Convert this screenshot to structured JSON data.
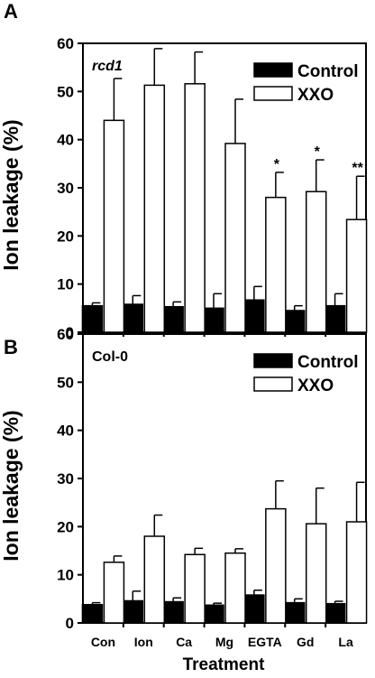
{
  "figure": {
    "xlabel": "Treatment",
    "ylabel": "Ion leakage (%)"
  },
  "chart_data": [
    {
      "type": "bar",
      "panel": "A",
      "label": "rcd1",
      "categories": [
        "Con",
        "Ion",
        "Ca",
        "Mg",
        "EGTA",
        "Gd",
        "La"
      ],
      "ylim": [
        0,
        60
      ],
      "yticks": [
        0,
        10,
        20,
        30,
        40,
        50,
        60
      ],
      "legend": "top-right",
      "grid": false,
      "series": [
        {
          "name": "Control",
          "color": "#000000",
          "values": [
            5.5,
            5.8,
            5.3,
            5.0,
            6.7,
            4.5,
            5.5
          ],
          "errors": [
            0.6,
            1.8,
            1.0,
            3.0,
            2.8,
            1.0,
            2.5
          ]
        },
        {
          "name": "XXO",
          "color": "#ffffff",
          "values": [
            44.0,
            51.3,
            51.6,
            39.2,
            28.0,
            29.2,
            23.4
          ],
          "errors": [
            8.7,
            7.6,
            6.6,
            9.2,
            5.2,
            6.6,
            9.0
          ]
        }
      ],
      "annotations": [
        "",
        "",
        "",
        "",
        "*",
        "*",
        "**"
      ]
    },
    {
      "type": "bar",
      "panel": "B",
      "label": "Col-0",
      "categories": [
        "Con",
        "Ion",
        "Ca",
        "Mg",
        "EGTA",
        "Gd",
        "La"
      ],
      "ylim": [
        0,
        60
      ],
      "yticks": [
        0,
        10,
        20,
        30,
        40,
        50,
        60
      ],
      "legend": "top-right",
      "grid": false,
      "series": [
        {
          "name": "Control",
          "color": "#000000",
          "values": [
            3.8,
            4.6,
            4.4,
            3.7,
            5.8,
            4.2,
            4.0
          ],
          "errors": [
            0.4,
            2.0,
            0.8,
            0.4,
            1.0,
            0.8,
            0.5
          ]
        },
        {
          "name": "XXO",
          "color": "#ffffff",
          "values": [
            12.6,
            18.0,
            14.2,
            14.5,
            23.7,
            20.6,
            21.0
          ],
          "errors": [
            1.3,
            4.4,
            1.3,
            0.9,
            5.8,
            7.4,
            8.2
          ]
        }
      ],
      "annotations": [
        "",
        "",
        "",
        "",
        "",
        "",
        ""
      ]
    }
  ]
}
